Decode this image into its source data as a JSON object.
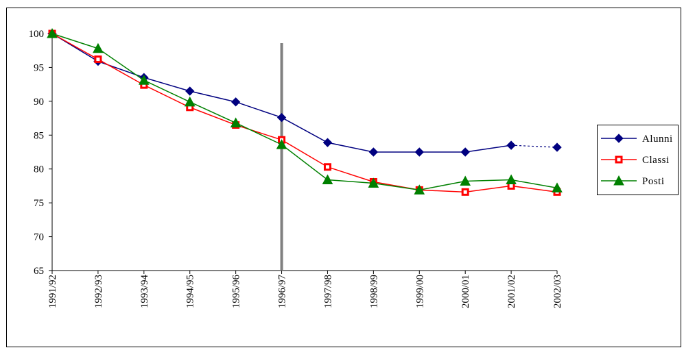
{
  "chart_data": {
    "type": "line",
    "categories": [
      "1991/92",
      "1992/93",
      "1993/94",
      "1994/95",
      "1995/96",
      "1996/97",
      "1997/98",
      "1998/99",
      "1999/00",
      "2000/01",
      "2001/02",
      "2002/03"
    ],
    "ylim": [
      65,
      100
    ],
    "yticks": [
      65,
      70,
      75,
      80,
      85,
      90,
      95,
      100
    ],
    "grid": false,
    "legend": "right",
    "reference_line_at": "1996/97",
    "series": [
      {
        "name": "Alunni",
        "color": "#000080",
        "marker": "diamond",
        "values": [
          100,
          95.9,
          93.5,
          91.5,
          89.9,
          87.6,
          83.9,
          82.5,
          82.5,
          82.5,
          83.5,
          83.2
        ],
        "dashed_last_segment": true
      },
      {
        "name": "Classi",
        "color": "#ff0000",
        "marker": "square",
        "values": [
          100,
          96.2,
          92.4,
          89.1,
          86.5,
          84.3,
          80.3,
          78.1,
          76.9,
          76.6,
          77.5,
          76.6
        ]
      },
      {
        "name": "Posti",
        "color": "#008000",
        "marker": "triangle",
        "values": [
          100,
          97.8,
          93.1,
          89.9,
          86.8,
          83.6,
          78.4,
          77.9,
          76.9,
          78.2,
          78.4,
          77.2
        ]
      }
    ]
  }
}
